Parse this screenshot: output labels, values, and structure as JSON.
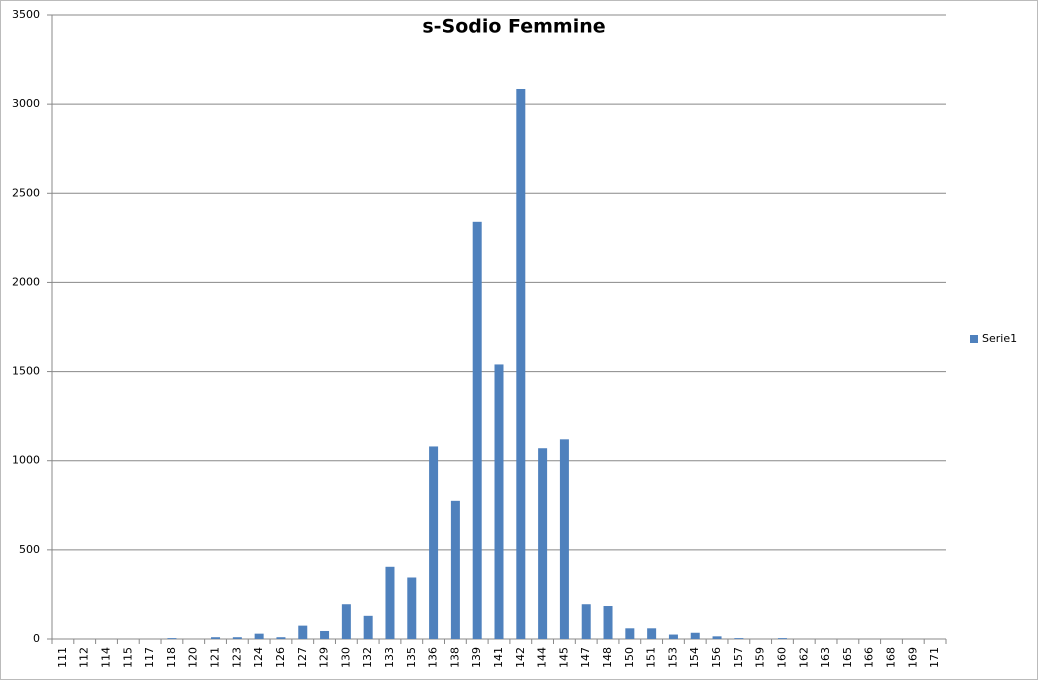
{
  "chart_data": {
    "type": "bar",
    "title": "s-Sodio Femmine",
    "categories": [
      "111",
      "112",
      "114",
      "115",
      "117",
      "118",
      "120",
      "121",
      "123",
      "124",
      "126",
      "127",
      "129",
      "130",
      "132",
      "133",
      "135",
      "136",
      "138",
      "139",
      "141",
      "142",
      "144",
      "145",
      "147",
      "148",
      "150",
      "151",
      "153",
      "154",
      "156",
      "157",
      "159",
      "160",
      "162",
      "163",
      "165",
      "166",
      "168",
      "169",
      "171"
    ],
    "series": [
      {
        "name": "Serie1",
        "color": "#4f81bd",
        "values": [
          0,
          0,
          0,
          0,
          0,
          5,
          0,
          10,
          10,
          30,
          10,
          75,
          45,
          195,
          130,
          405,
          345,
          1080,
          775,
          2340,
          1540,
          3085,
          1070,
          1120,
          195,
          185,
          60,
          60,
          25,
          35,
          15,
          5,
          0,
          5,
          0,
          0,
          0,
          0,
          0,
          0,
          0
        ]
      }
    ],
    "ylim": [
      0,
      3500
    ],
    "yticks": [
      0,
      500,
      1000,
      1500,
      2000,
      2500,
      3000,
      3500
    ],
    "grid": true,
    "legend": "right"
  }
}
